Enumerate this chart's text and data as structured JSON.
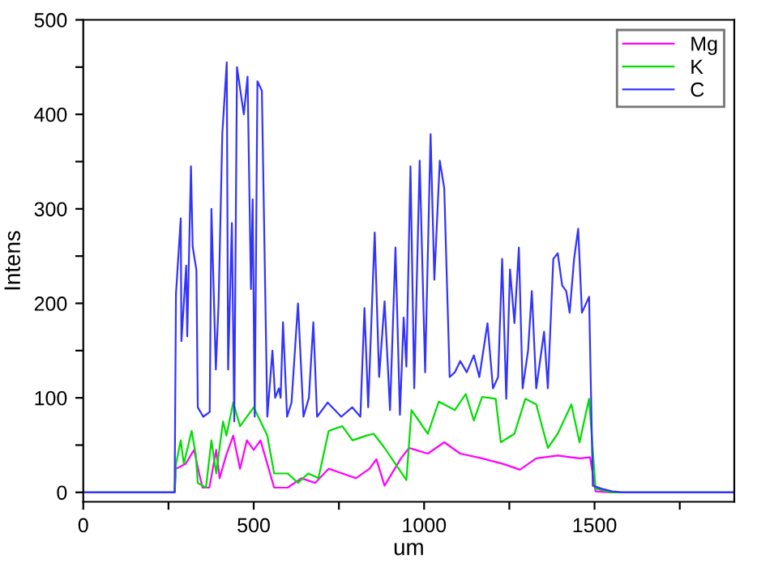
{
  "chart_data": {
    "type": "line",
    "xlabel": "um",
    "ylabel": "Intens",
    "xlim": [
      0,
      1910
    ],
    "ylim": [
      -10,
      500
    ],
    "xticks": [
      0,
      {
        "value": 250,
        "label": null
      },
      500,
      {
        "value": 750,
        "label": null
      },
      1000,
      {
        "value": 1250,
        "label": null
      },
      1500,
      {
        "value": 1750,
        "label": null
      }
    ],
    "yticks": [
      0,
      {
        "value": 50,
        "label": null
      },
      100,
      {
        "value": 150,
        "label": null
      },
      200,
      {
        "value": 250,
        "label": null
      },
      300,
      {
        "value": 350,
        "label": null
      },
      400,
      {
        "value": 450,
        "label": null
      },
      500
    ],
    "grid": false,
    "legend": "top right",
    "marker": "none",
    "line_style": "solid",
    "series": [
      {
        "name": "Mg",
        "color": "#ff00ff",
        "x": [
          0,
          268,
          272,
          300,
          325,
          340,
          350,
          370,
          390,
          400,
          420,
          440,
          460,
          480,
          500,
          520,
          540,
          560,
          600,
          640,
          680,
          720,
          760,
          800,
          840,
          860,
          884,
          932,
          956,
          1011,
          1059,
          1106,
          1170,
          1233,
          1281,
          1329,
          1392,
          1456,
          1487,
          1503,
          1550,
          1910
        ],
        "values": [
          0,
          0,
          25,
          30,
          45,
          20,
          5,
          5,
          45,
          15,
          40,
          60,
          25,
          55,
          45,
          55,
          30,
          5,
          5,
          15,
          10,
          25,
          20,
          15,
          25,
          35,
          7,
          36,
          47,
          41,
          53,
          41,
          36,
          30,
          24,
          36,
          39,
          36,
          37,
          1,
          0,
          0
        ]
      },
      {
        "name": "K",
        "color": "#00dd00",
        "x": [
          0,
          268,
          272,
          286,
          295,
          318,
          330,
          336,
          360,
          376,
          390,
          410,
          420,
          440,
          460,
          500,
          520,
          540,
          560,
          600,
          630,
          660,
          690,
          720,
          760,
          790,
          830,
          852,
          884,
          948,
          963,
          1011,
          1043,
          1090,
          1122,
          1146,
          1170,
          1210,
          1225,
          1265,
          1297,
          1329,
          1363,
          1392,
          1432,
          1456,
          1484,
          1503,
          1550,
          1910
        ],
        "values": [
          0,
          0,
          30,
          55,
          30,
          65,
          40,
          10,
          5,
          55,
          20,
          75,
          60,
          95,
          70,
          90,
          75,
          60,
          20,
          20,
          10,
          20,
          15,
          65,
          70,
          55,
          60,
          62,
          47,
          13,
          87,
          62,
          96,
          87,
          104,
          76,
          101,
          99,
          53,
          62,
          99,
          93,
          47,
          62,
          93,
          53,
          99,
          4,
          0,
          0
        ]
      },
      {
        "name": "C",
        "color": "#3333ff",
        "x": [
          0,
          268,
          272,
          286,
          288,
          302,
          305,
          316,
          321,
          332,
          336,
          352,
          371,
          376,
          389,
          397,
          408,
          421,
          425,
          436,
          443,
          451,
          471,
          482,
          492,
          497,
          503,
          511,
          524,
          540,
          555,
          563,
          574,
          579,
          586,
          598,
          611,
          630,
          646,
          662,
          675,
          686,
          717,
          757,
          789,
          813,
          825,
          836,
          855,
          868,
          884,
          900,
          916,
          929,
          940,
          948,
          960,
          971,
          987,
          1003,
          1019,
          1030,
          1046,
          1059,
          1075,
          1090,
          1106,
          1125,
          1146,
          1162,
          1186,
          1202,
          1217,
          1229,
          1241,
          1252,
          1265,
          1278,
          1289,
          1305,
          1316,
          1329,
          1352,
          1363,
          1379,
          1392,
          1405,
          1417,
          1427,
          1440,
          1452,
          1463,
          1484,
          1495,
          1519,
          1551,
          1582,
          1910
        ],
        "values": [
          0,
          0,
          210,
          290,
          160,
          240,
          165,
          345,
          260,
          235,
          90,
          80,
          85,
          300,
          130,
          200,
          380,
          455,
          130,
          285,
          75,
          450,
          400,
          440,
          215,
          310,
          80,
          435,
          425,
          80,
          150,
          100,
          110,
          100,
          180,
          80,
          95,
          200,
          80,
          100,
          180,
          80,
          95,
          80,
          90,
          80,
          195,
          90,
          275,
          122,
          202,
          87,
          259,
          82,
          185,
          133,
          345,
          110,
          351,
          127,
          379,
          225,
          351,
          322,
          122,
          127,
          139,
          127,
          145,
          122,
          179,
          110,
          122,
          247,
          99,
          236,
          179,
          259,
          110,
          150,
          213,
          110,
          170,
          110,
          247,
          253,
          219,
          213,
          190,
          247,
          279,
          190,
          207,
          7,
          4,
          1,
          0,
          0
        ]
      }
    ]
  }
}
